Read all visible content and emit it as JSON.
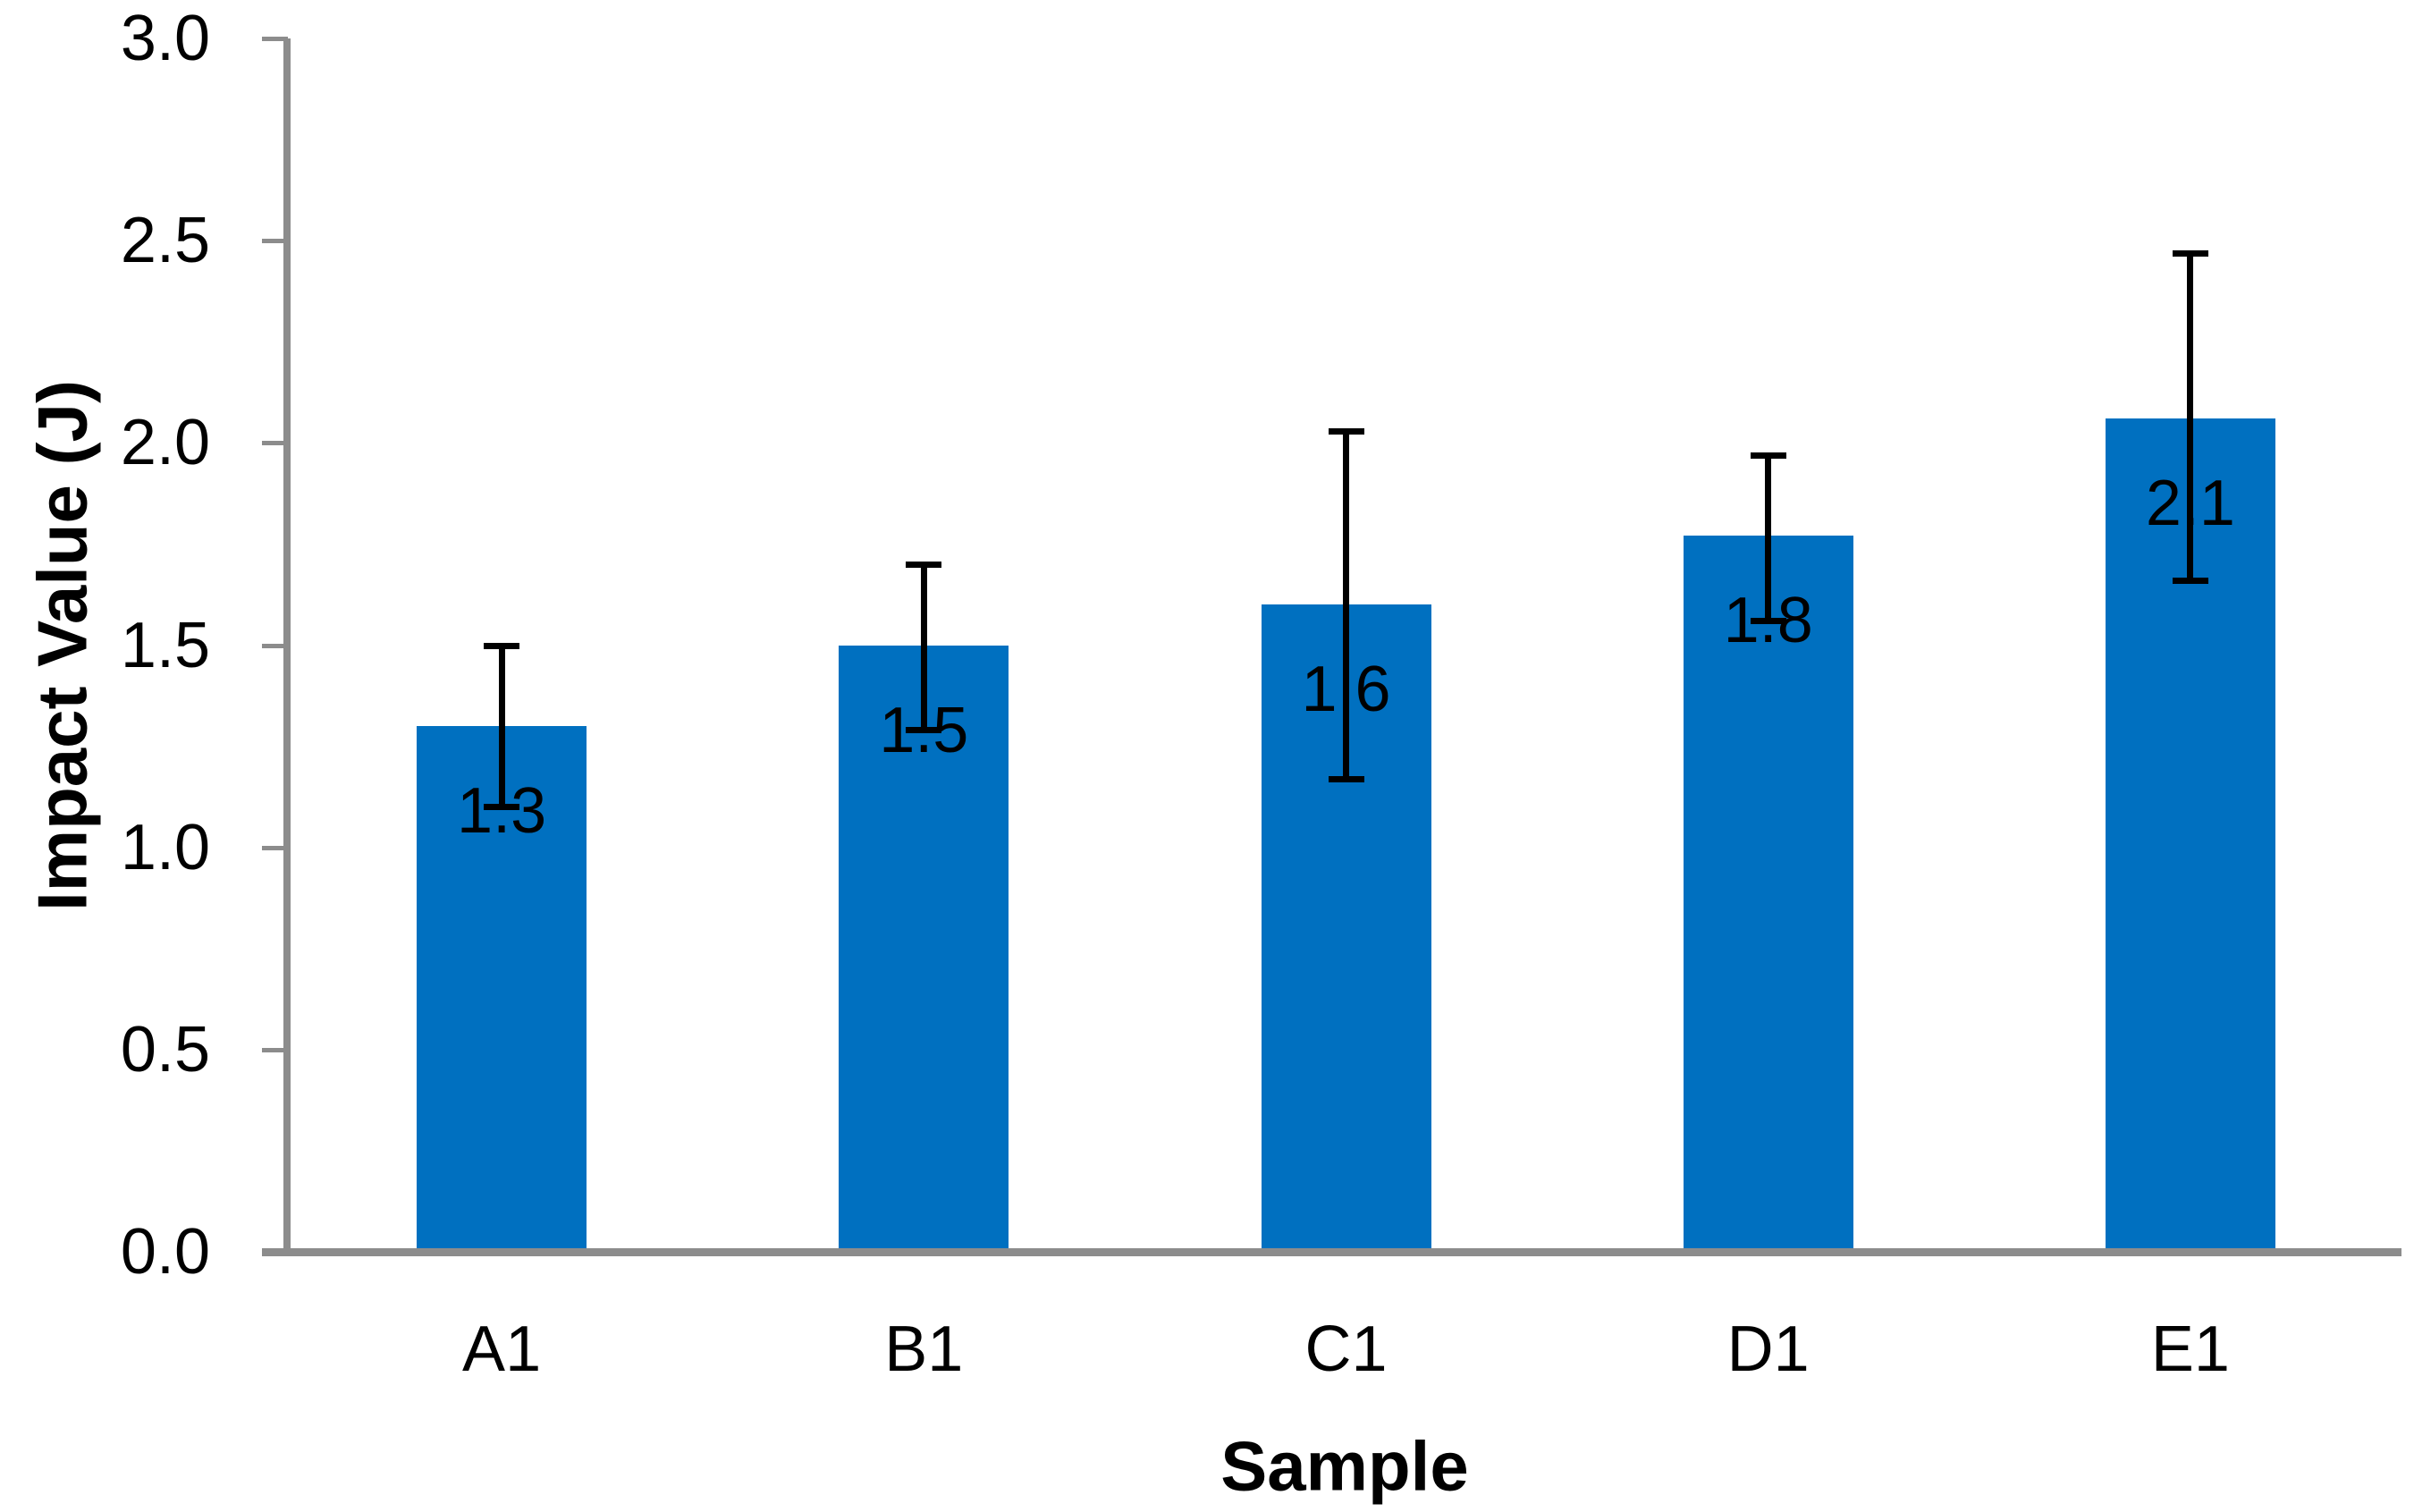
{
  "chart_data": {
    "type": "bar",
    "xlabel": "Sample",
    "ylabel": "Impact Value (J)",
    "categories": [
      "A1",
      "B1",
      "C1",
      "D1",
      "E1"
    ],
    "values": [
      1.3,
      1.5,
      1.6,
      1.8,
      2.1
    ],
    "data_labels": [
      "1.3",
      "1.5",
      "1.6",
      "1.8",
      "2.1"
    ],
    "bar_heights_precise": [
      1.3,
      1.5,
      1.6,
      1.77,
      2.06
    ],
    "error_plus": [
      0.2,
      0.2,
      0.43,
      0.2,
      0.41
    ],
    "error_minus": [
      0.2,
      0.21,
      0.43,
      0.21,
      0.4
    ],
    "ylim": [
      0.0,
      3.0
    ],
    "y_tick_values": [
      3.0,
      2.5,
      2.0,
      1.5,
      1.0,
      0.5,
      0.0
    ],
    "y_tick_labels": [
      "3.0",
      "2.5",
      "2.0",
      "1.5",
      "1.0",
      "0.5",
      "0.0"
    ],
    "grid": false,
    "legend": false,
    "bar_color": "#0070C0",
    "axis_color": "#8C8C8C",
    "label_color": "#000000"
  }
}
